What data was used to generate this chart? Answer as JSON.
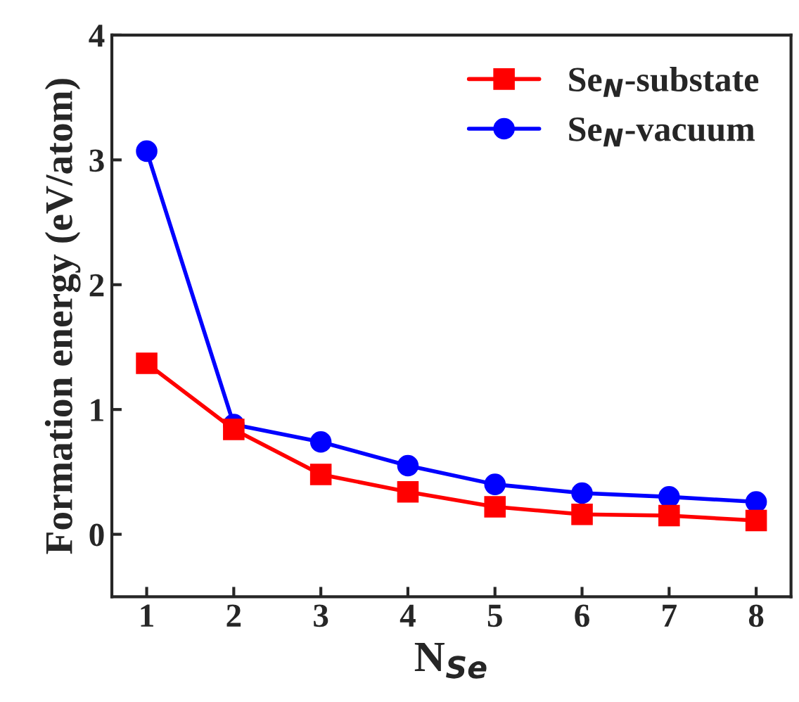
{
  "chart_data": {
    "type": "line",
    "xlabel": "N$_{Se}$",
    "ylabel": "Formation energy (eV/atom)",
    "x": [
      1,
      2,
      3,
      4,
      5,
      6,
      7,
      8
    ],
    "series": [
      {
        "name": "Se$_{N}$-substate",
        "color": "#ff0000",
        "marker": "square",
        "values": [
          1.37,
          0.84,
          0.48,
          0.34,
          0.22,
          0.16,
          0.15,
          0.11
        ]
      },
      {
        "name": "Se$_{N}$-vacuum",
        "color": "#0000ff",
        "marker": "circle",
        "values": [
          3.07,
          0.88,
          0.74,
          0.55,
          0.4,
          0.33,
          0.3,
          0.26
        ]
      }
    ],
    "xlim": [
      0.6,
      8.4
    ],
    "xticks": [
      1,
      2,
      3,
      4,
      5,
      6,
      7,
      8
    ],
    "ylim": [
      -0.5,
      4
    ],
    "yticks": [
      0,
      1,
      2,
      3,
      4
    ],
    "legend": "top right",
    "grid": false,
    "line_style": "solid"
  }
}
